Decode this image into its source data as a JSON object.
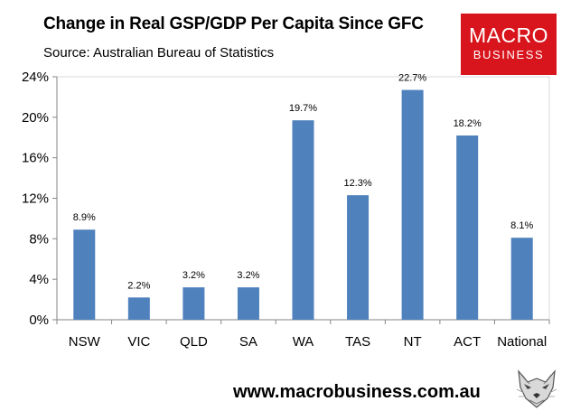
{
  "header": {
    "title": "Change in Real GSP/GDP Per Capita Since GFC",
    "subtitle": "Source: Australian Bureau of Statistics"
  },
  "logo": {
    "line1": "MACRO",
    "line2": "BUSINESS"
  },
  "footer": {
    "url": "www.macrobusiness.com.au"
  },
  "colors": {
    "bar": "#4f81bd",
    "gridline": "#bfbfbf",
    "logo_bg": "#d8141c"
  },
  "chart_data": {
    "type": "bar",
    "title": "Change in Real GSP/GDP Per Capita Since GFC",
    "categories": [
      "NSW",
      "VIC",
      "QLD",
      "SA",
      "WA",
      "TAS",
      "NT",
      "ACT",
      "National"
    ],
    "values": [
      8.9,
      2.2,
      3.2,
      3.2,
      19.7,
      12.3,
      22.7,
      18.2,
      8.1
    ],
    "data_labels": [
      "8.9%",
      "2.2%",
      "3.2%",
      "3.2%",
      "19.7%",
      "12.3%",
      "22.7%",
      "18.2%",
      "8.1%"
    ],
    "ylim": [
      0,
      24
    ],
    "yticks": [
      0,
      4,
      8,
      12,
      16,
      20,
      24
    ],
    "ytick_labels": [
      "0%",
      "4%",
      "8%",
      "12%",
      "16%",
      "20%",
      "24%"
    ],
    "xlabel": "",
    "ylabel": "",
    "grid": false,
    "legend": "none"
  }
}
